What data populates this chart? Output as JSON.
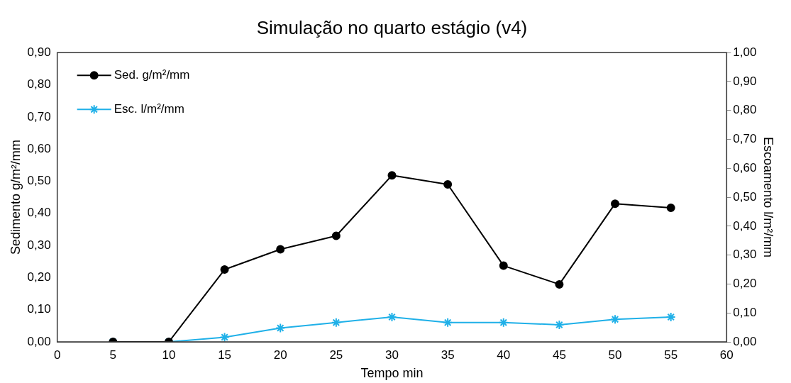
{
  "chart_data": {
    "type": "line",
    "title": "Simulação no quarto estágio (v4)",
    "xlabel": "Tempo min",
    "ylabel": "Sedimento g/m²/mm",
    "y2label": "Escoamento l/m²/mm",
    "x": [
      5,
      10,
      15,
      20,
      25,
      30,
      35,
      40,
      45,
      50,
      55
    ],
    "series": [
      {
        "name": "Sed. g/m²/mm",
        "color": "#000000",
        "marker": "circle",
        "values": [
          0,
          0,
          0.225,
          0.288,
          0.33,
          0.518,
          0.49,
          0.237,
          0.179,
          0.43,
          0.417
        ]
      },
      {
        "name": "Esc. l/m²/mm",
        "color": "#1fb0e8",
        "marker": "cross",
        "axis": "y2",
        "values": [
          0,
          0,
          0.016,
          0.048,
          0.067,
          0.086,
          0.067,
          0.067,
          0.059,
          0.078,
          0.086
        ]
      }
    ],
    "xlim": [
      0,
      60
    ],
    "xticks": [
      0,
      5,
      10,
      15,
      20,
      25,
      30,
      35,
      40,
      45,
      50,
      55,
      60
    ],
    "ylim": [
      0,
      0.9
    ],
    "yticks": [
      {
        "value": 0,
        "label": "0,00"
      },
      {
        "value": 0.1,
        "label": "0,10"
      },
      {
        "value": 0.2,
        "label": "0,20"
      },
      {
        "value": 0.3,
        "label": "0,30"
      },
      {
        "value": 0.4,
        "label": "0,40"
      },
      {
        "value": 0.5,
        "label": "0,50"
      },
      {
        "value": 0.6,
        "label": "0,60"
      },
      {
        "value": 0.7,
        "label": "0,70"
      },
      {
        "value": 0.8,
        "label": "0,80"
      },
      {
        "value": 0.9,
        "label": "0,90"
      }
    ],
    "y2lim": [
      0,
      1
    ],
    "y2ticks": [
      {
        "value": 0,
        "label": "0,00"
      },
      {
        "value": 0.1,
        "label": "0,10"
      },
      {
        "value": 0.2,
        "label": "0,20"
      },
      {
        "value": 0.3,
        "label": "0,30"
      },
      {
        "value": 0.4,
        "label": "0,40"
      },
      {
        "value": 0.5,
        "label": "0,50"
      },
      {
        "value": 0.6,
        "label": "0,60"
      },
      {
        "value": 0.7,
        "label": "0,70"
      },
      {
        "value": 0.8,
        "label": "0,80"
      },
      {
        "value": 0.9,
        "label": "0,90"
      },
      {
        "value": 1,
        "label": "1,00"
      }
    ],
    "grid": false,
    "legend": "top left",
    "line_style": "solid"
  }
}
